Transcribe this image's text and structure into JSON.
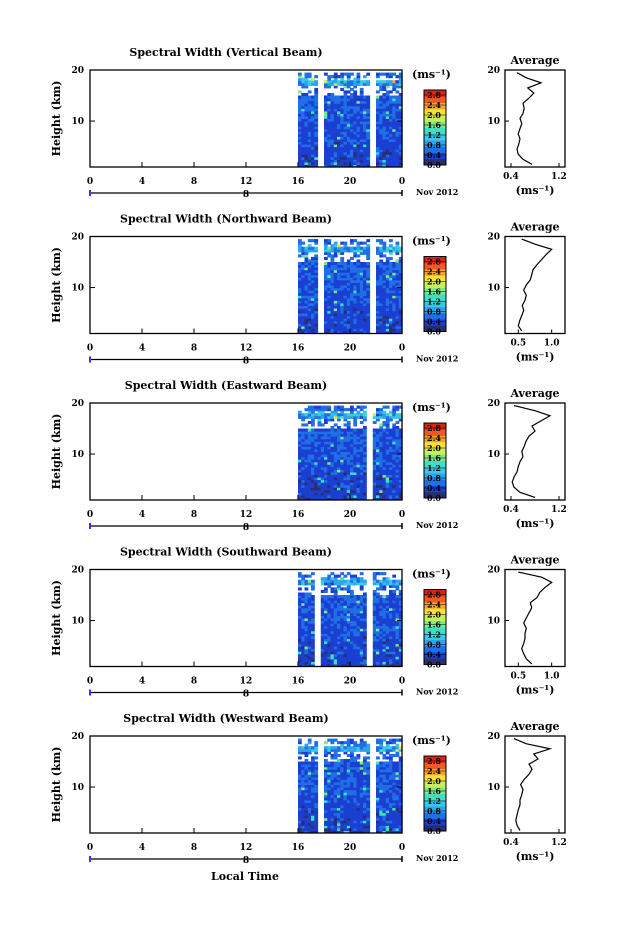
{
  "figure": {
    "xlabel": "Local Time",
    "colorbar": {
      "unit_label": "(ms⁻¹)",
      "ticks": [
        "0.0",
        "0.4",
        "0.8",
        "1.2",
        "1.6",
        "2.0",
        "2.4",
        "2.8"
      ],
      "range": [
        0.0,
        3.0
      ],
      "colors": [
        "#2a2e6e",
        "#1b3fd1",
        "#1f6fe6",
        "#2ea3f0",
        "#37c9e8",
        "#3fe0c2",
        "#7ee88a",
        "#c8ee5a",
        "#f6e03a",
        "#f7a52a",
        "#ef5a22",
        "#d9241c"
      ]
    }
  },
  "chart_data": [
    {
      "type": "heatmap",
      "title": "Spectral Width (Vertical Beam)",
      "ylabel": "Height (km)",
      "y_ticks": [
        "20",
        "10"
      ],
      "x_ticks": [
        "0",
        "4",
        "8",
        "12",
        "16",
        "20",
        "0"
      ],
      "x_range": [
        0,
        24
      ],
      "y_range": [
        1,
        20
      ],
      "date_label": "Nov 2012",
      "day_marker": "8",
      "data_start_hour": 16,
      "data_gap_hours": [
        [
          17.6,
          18.0
        ],
        [
          21.5,
          21.8
        ]
      ],
      "profile": {
        "title": "Average",
        "xlabel": "(ms⁻¹)",
        "x_ticks": [
          "0.4",
          "1.2"
        ],
        "x_range": [
          0.3,
          1.3
        ],
        "y_ticks": [
          "20",
          "10"
        ],
        "heights": [
          1.5,
          2.5,
          3.5,
          4.5,
          5.5,
          6.5,
          7.5,
          8.5,
          9.5,
          10.5,
          11.5,
          12.5,
          13.5,
          14.5,
          15.5,
          16.5,
          17.5,
          18.5,
          19.5
        ],
        "values": [
          0.75,
          0.6,
          0.52,
          0.5,
          0.53,
          0.55,
          0.52,
          0.55,
          0.58,
          0.55,
          0.6,
          0.62,
          0.6,
          0.7,
          0.78,
          0.68,
          0.9,
          0.65,
          0.5
        ]
      }
    },
    {
      "type": "heatmap",
      "title": "Spectral Width (Northward Beam)",
      "ylabel": "Height (km)",
      "y_ticks": [
        "20",
        "10"
      ],
      "x_ticks": [
        "0",
        "4",
        "8",
        "12",
        "16",
        "20",
        "0"
      ],
      "x_range": [
        0,
        24
      ],
      "y_range": [
        1,
        20
      ],
      "date_label": "Nov 2012",
      "day_marker": "8",
      "data_start_hour": 16,
      "data_gap_hours": [
        [
          17.6,
          17.9
        ],
        [
          21.5,
          21.8
        ]
      ],
      "profile": {
        "title": "Average",
        "xlabel": "(ms⁻¹)",
        "x_ticks": [
          "0.5",
          "1.0"
        ],
        "x_range": [
          0.3,
          1.2
        ],
        "y_ticks": [
          "20",
          "10"
        ],
        "heights": [
          1.5,
          2.5,
          3.5,
          4.5,
          5.5,
          6.5,
          7.5,
          8.5,
          9.5,
          10.5,
          11.5,
          12.5,
          13.5,
          14.5,
          15.5,
          16.5,
          17.5,
          18.5,
          19.5
        ],
        "values": [
          0.55,
          0.5,
          0.52,
          0.55,
          0.58,
          0.56,
          0.6,
          0.62,
          0.58,
          0.62,
          0.68,
          0.7,
          0.72,
          0.78,
          0.85,
          0.92,
          1.0,
          0.75,
          0.55
        ]
      }
    },
    {
      "type": "heatmap",
      "title": "Spectral Width (Eastward Beam)",
      "ylabel": "Height (km)",
      "y_ticks": [
        "20",
        "10"
      ],
      "x_ticks": [
        "0",
        "4",
        "8",
        "12",
        "16",
        "20",
        "0"
      ],
      "x_range": [
        0,
        24
      ],
      "y_range": [
        1,
        20
      ],
      "date_label": "Nov 2012",
      "day_marker": "8",
      "data_start_hour": 16,
      "data_gap_hours": [
        [
          21.4,
          21.7
        ]
      ],
      "profile": {
        "title": "Average",
        "xlabel": "(ms⁻¹)",
        "x_ticks": [
          "0.4",
          "1.2"
        ],
        "x_range": [
          0.3,
          1.3
        ],
        "y_ticks": [
          "20",
          "10"
        ],
        "heights": [
          1.5,
          2.5,
          3.5,
          4.5,
          5.5,
          6.5,
          7.5,
          8.5,
          9.5,
          10.5,
          11.5,
          12.5,
          13.5,
          14.5,
          15.5,
          16.5,
          17.5,
          18.5,
          19.5
        ],
        "values": [
          0.8,
          0.55,
          0.45,
          0.42,
          0.45,
          0.5,
          0.52,
          0.55,
          0.6,
          0.58,
          0.62,
          0.65,
          0.7,
          0.8,
          0.75,
          0.9,
          1.05,
          0.8,
          0.45
        ]
      }
    },
    {
      "type": "heatmap",
      "title": "Spectral Width (Southward Beam)",
      "ylabel": "Height (km)",
      "y_ticks": [
        "20",
        "10"
      ],
      "x_ticks": [
        "0",
        "4",
        "8",
        "12",
        "16",
        "20",
        "0"
      ],
      "x_range": [
        0,
        24
      ],
      "y_range": [
        1,
        20
      ],
      "date_label": "Nov 2012",
      "day_marker": "8",
      "data_start_hour": 16,
      "data_gap_hours": [
        [
          17.4,
          17.7
        ],
        [
          21.3,
          21.6
        ]
      ],
      "profile": {
        "title": "Average",
        "xlabel": "(ms⁻¹)",
        "x_ticks": [
          "0.5",
          "1.0"
        ],
        "x_range": [
          0.3,
          1.2
        ],
        "y_ticks": [
          "20",
          "10"
        ],
        "heights": [
          1.5,
          2.5,
          3.5,
          4.5,
          5.5,
          6.5,
          7.5,
          8.5,
          9.5,
          10.5,
          11.5,
          12.5,
          13.5,
          14.5,
          15.5,
          16.5,
          17.5,
          18.5,
          19.5
        ],
        "values": [
          0.7,
          0.62,
          0.58,
          0.55,
          0.58,
          0.6,
          0.6,
          0.62,
          0.58,
          0.62,
          0.66,
          0.7,
          0.68,
          0.78,
          0.82,
          0.9,
          1.0,
          0.85,
          0.5
        ]
      }
    },
    {
      "type": "heatmap",
      "title": "Spectral Width (Westward Beam)",
      "ylabel": "Height (km)",
      "y_ticks": [
        "20",
        "10"
      ],
      "x_ticks": [
        "0",
        "4",
        "8",
        "12",
        "16",
        "20",
        "0"
      ],
      "x_range": [
        0,
        24
      ],
      "y_range": [
        1,
        20
      ],
      "date_label": "Nov 2012",
      "day_marker": "8",
      "data_start_hour": 16,
      "data_gap_hours": [
        [
          17.6,
          17.9
        ],
        [
          21.5,
          21.8
        ]
      ],
      "profile": {
        "title": "Average",
        "xlabel": "(ms⁻¹)",
        "x_ticks": [
          "0.4",
          "1.2"
        ],
        "x_range": [
          0.3,
          1.3
        ],
        "y_ticks": [
          "20",
          "10"
        ],
        "heights": [
          1.5,
          2.5,
          3.5,
          4.5,
          5.5,
          6.5,
          7.5,
          8.5,
          9.5,
          10.5,
          11.5,
          12.5,
          13.5,
          14.5,
          15.5,
          16.5,
          17.5,
          18.5,
          19.5
        ],
        "values": [
          0.55,
          0.5,
          0.48,
          0.5,
          0.52,
          0.55,
          0.55,
          0.58,
          0.6,
          0.56,
          0.62,
          0.7,
          0.75,
          0.7,
          0.85,
          0.78,
          1.05,
          0.65,
          0.45
        ]
      }
    }
  ]
}
